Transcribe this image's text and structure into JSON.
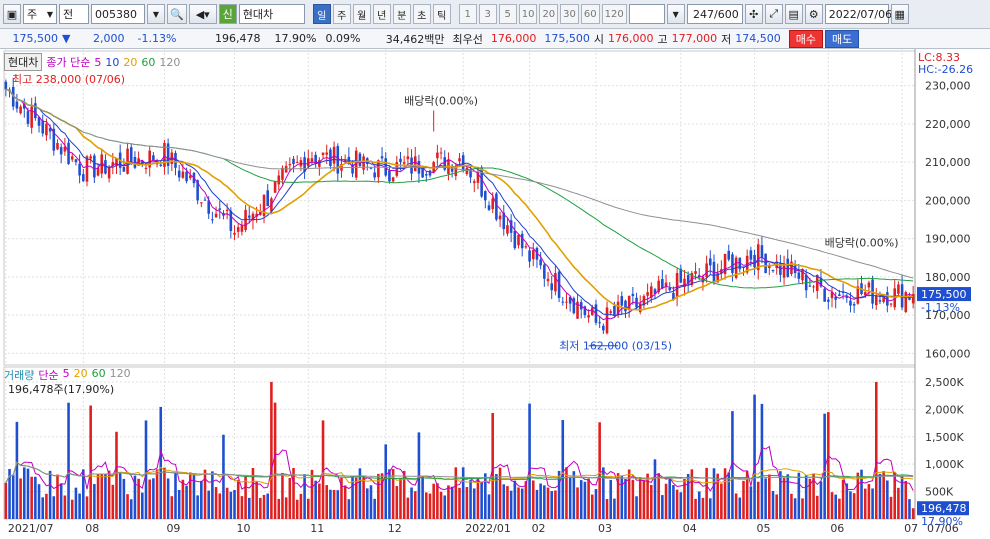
{
  "toolbar": {
    "market": "주",
    "scope": "전",
    "code": "005380",
    "badge": "신",
    "name": "현대차",
    "periods": [
      "일",
      "주",
      "월",
      "년",
      "분",
      "초",
      "틱"
    ],
    "minute_buttons": [
      "1",
      "3",
      "5",
      "10",
      "20",
      "30",
      "60",
      "120"
    ],
    "count": "247/600",
    "date": "2022/07/06"
  },
  "quote": {
    "price": "175,500",
    "arrow": "▼",
    "change": "2,000",
    "change_pct": "-1.13%",
    "volume": "196,478",
    "vol_ratio": "17.90%",
    "turnover": "0.09%",
    "amount": "34,462백만",
    "priority_label": "최우선",
    "ask": "176,000",
    "bid": "175,500",
    "open_label": "시",
    "open": "176,000",
    "high_label": "고",
    "high": "177,000",
    "low_label": "저",
    "low": "174,500",
    "buy": "매수",
    "sell": "매도"
  },
  "price_panel": {
    "stock_tag": "현대차",
    "ma_label": "종가 단순",
    "ma_periods": [
      "5",
      "10",
      "20",
      "60",
      "120"
    ],
    "ma_colors": [
      "#c000c0",
      "#2040d0",
      "#e0a000",
      "#20a040",
      "#909090"
    ],
    "lc": "LC:8.33",
    "hc": "HC:-26.26",
    "high_note": "최고 238,000 (07/06)",
    "low_note": "최저 162,000 (03/15)",
    "dividend_note_1": "배당락(0.00%)",
    "dividend_note_2": "배당락(0.00%)",
    "cur_price_tag": "175,500",
    "cur_pct_tag": "-1.13%",
    "yticks": [
      "230,000",
      "220,000",
      "210,000",
      "200,000",
      "190,000",
      "180,000",
      "170,000",
      "160,000"
    ]
  },
  "volume_panel": {
    "label": "거래량",
    "ma_label": "단순",
    "ma_periods": [
      "5",
      "20",
      "60",
      "120"
    ],
    "ma_colors": [
      "#c000c0",
      "#e0a000",
      "#20a040",
      "#909090"
    ],
    "info": "196,478주(17.90%)",
    "yticks": [
      "2,500K",
      "2,000K",
      "1,500K",
      "1,000K",
      "500K"
    ],
    "cur_tag": "196,478",
    "cur_pct": "17.90%"
  },
  "xaxis": [
    "2021/07",
    "08",
    "09",
    "10",
    "11",
    "12",
    "2022/01",
    "02",
    "03",
    "04",
    "05",
    "06",
    "07"
  ],
  "xaxis_right": "07/06",
  "colors": {
    "up": "#e02020",
    "down": "#1e4fd0",
    "grid": "#e0e0e0",
    "axis": "#888888"
  },
  "chart_data": [
    {
      "type": "candlestick",
      "title": "현대차",
      "y_unit": "KRW",
      "ylim": [
        158000,
        238000
      ],
      "x": [
        "2021/07",
        "08",
        "09",
        "10",
        "11",
        "12",
        "2022/01",
        "02",
        "03",
        "04",
        "05",
        "06",
        "07"
      ],
      "monthly_close_approx": [
        229000,
        208000,
        212000,
        192000,
        212000,
        208000,
        211000,
        185000,
        168000,
        178000,
        186000,
        176000,
        175500
      ],
      "max": 238000,
      "min": 162000,
      "last": 175500
    },
    {
      "type": "bar",
      "title": "거래량",
      "ylim": [
        0,
        2700000
      ],
      "last": 196478,
      "max_approx": 2500000
    }
  ]
}
